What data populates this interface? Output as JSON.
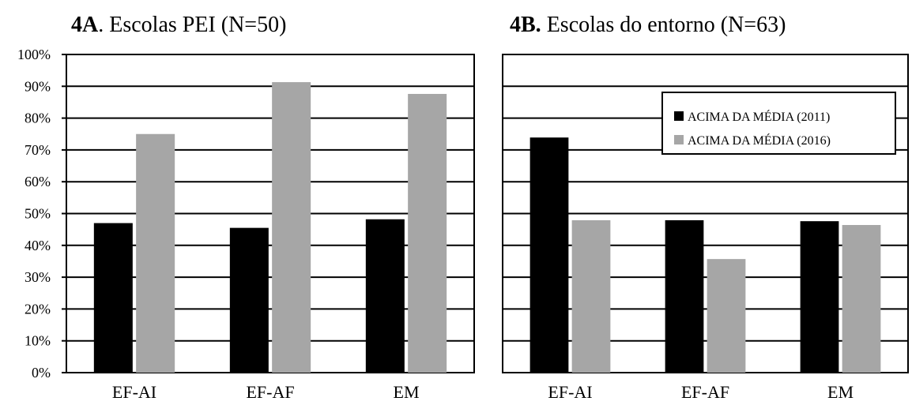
{
  "chart_data": [
    {
      "type": "bar",
      "title_prefix": "4A",
      "title_rest": ". Escolas PEI (N=50)",
      "categories": [
        "EF-AI",
        "EF-AF",
        "EM"
      ],
      "series": [
        {
          "values": [
            47,
            45.5,
            48.2
          ]
        },
        {
          "values": [
            75,
            91.3,
            87.6
          ]
        }
      ],
      "ylim": [
        0,
        100
      ],
      "yticks": [
        "0%",
        "10%",
        "20%",
        "30%",
        "40%",
        "50%",
        "60%",
        "70%",
        "80%",
        "90%",
        "100%"
      ],
      "grid": true
    },
    {
      "type": "bar",
      "title_prefix": "4B.",
      "title_rest": " Escolas do entorno (N=63)",
      "categories": [
        "EF-AI",
        "EF-AF",
        "EM"
      ],
      "series": [
        {
          "name": "ACIMA DA MÉDIA (2011)",
          "values": [
            73.9,
            47.9,
            47.6
          ]
        },
        {
          "name": "ACIMA DA MÉDIA (2016)",
          "values": [
            47.9,
            35.7,
            46.4
          ]
        }
      ],
      "ylim": [
        0,
        100
      ],
      "grid": true,
      "legend": "top-right"
    }
  ],
  "colors": {
    "series_2011": "#000000",
    "series_2016": "#a6a6a6"
  }
}
